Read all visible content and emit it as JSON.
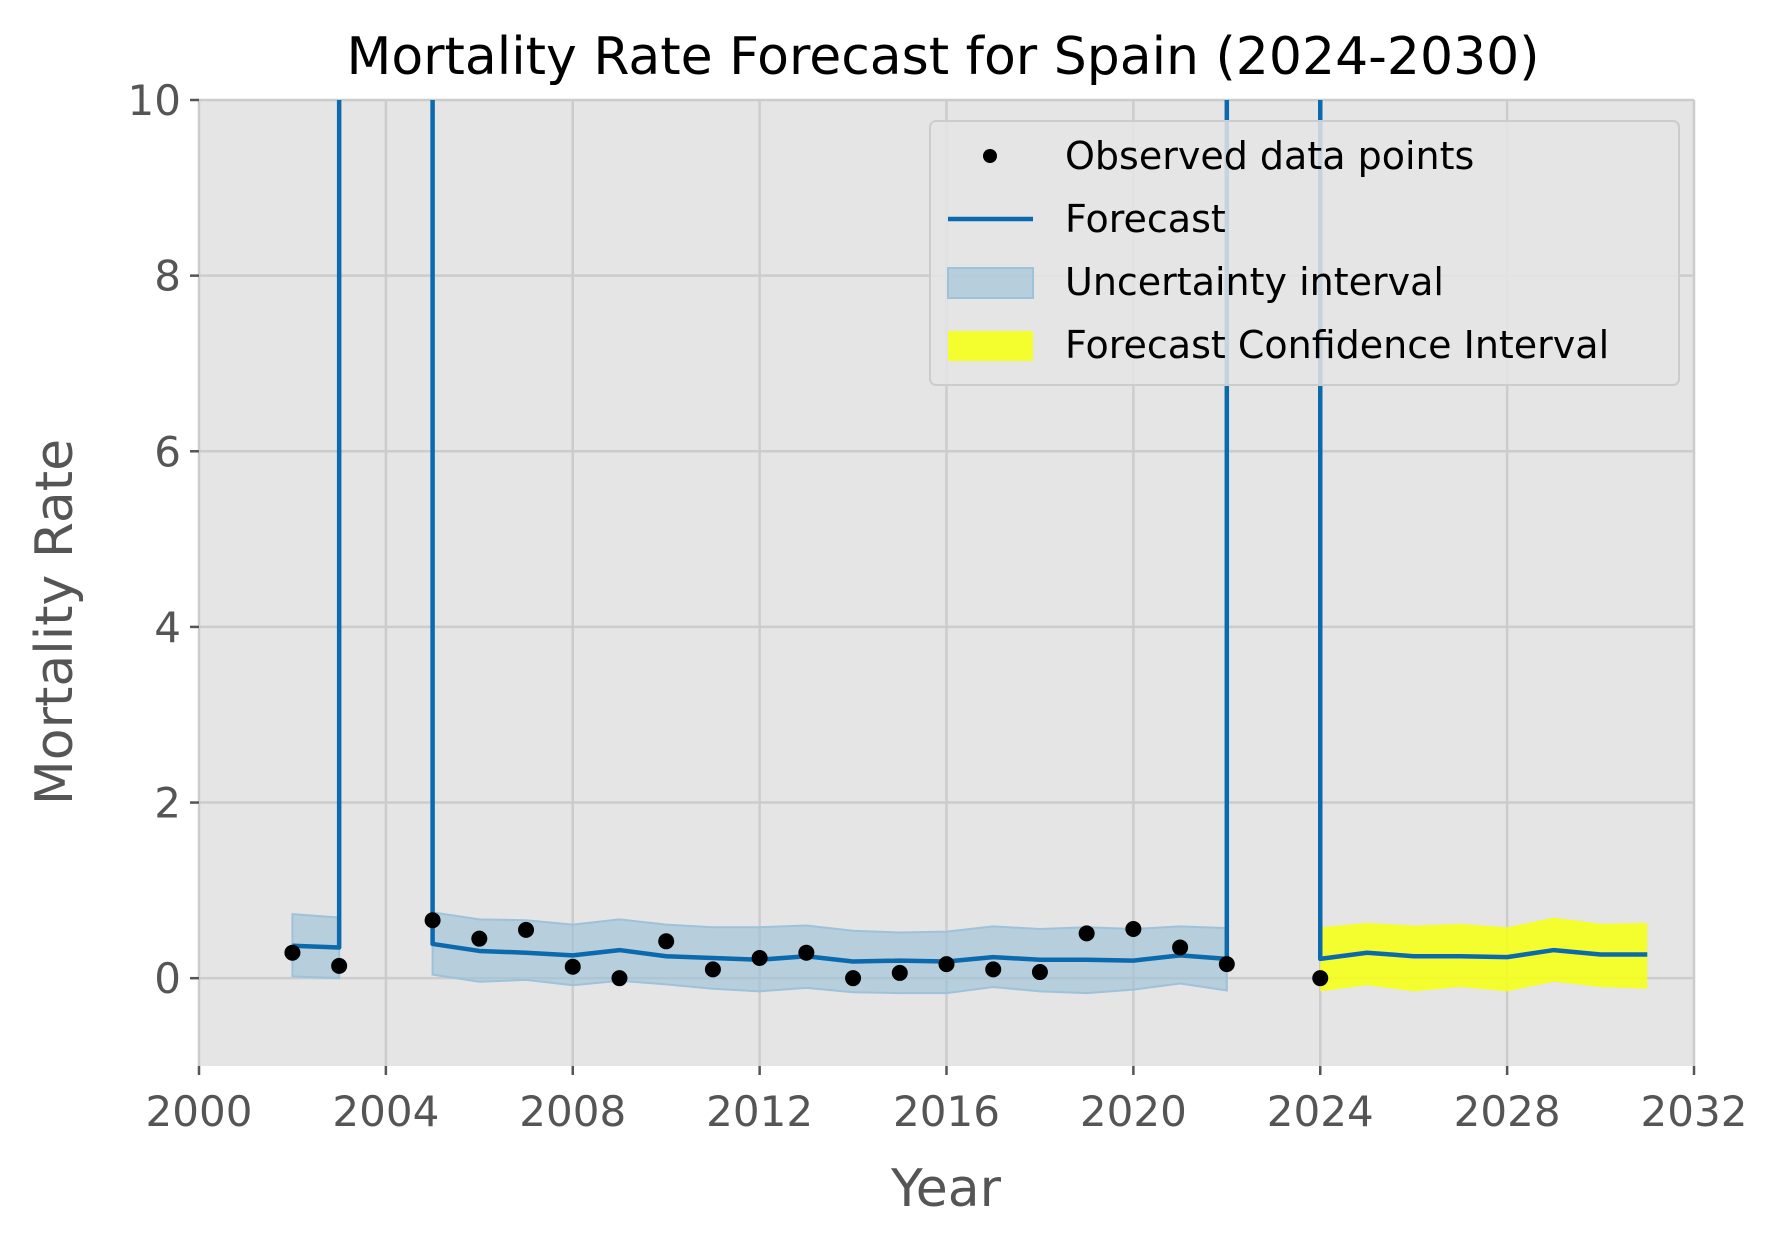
{
  "chart_data": {
    "type": "line",
    "title": "Mortality Rate Forecast for Spain (2024-2030)",
    "xlabel": "Year",
    "ylabel": "Mortality Rate",
    "xlim": [
      2000,
      2032
    ],
    "ylim": [
      -1,
      10
    ],
    "xticks": [
      2000,
      2004,
      2008,
      2012,
      2016,
      2020,
      2024,
      2028,
      2032
    ],
    "yticks": [
      0,
      2,
      4,
      6,
      8,
      10
    ],
    "xtick_labels": [
      "2000",
      "2004",
      "2008",
      "2012",
      "2016",
      "2020",
      "2024",
      "2028",
      "2032"
    ],
    "ytick_labels": [
      "0",
      "2",
      "4",
      "6",
      "8",
      "10"
    ],
    "grid": true,
    "legend_position": "top-right",
    "colors": {
      "background": "#e5e5e5",
      "grid": "#cccccc",
      "forecast": "#0a6aad",
      "uncertainty": "#9ec2d9",
      "confidence": "#f5ff1a",
      "points": "#000000"
    },
    "legend": [
      {
        "label": "Observed data points",
        "kind": "point"
      },
      {
        "label": "Forecast",
        "kind": "line"
      },
      {
        "label": "Uncertainty interval",
        "kind": "band"
      },
      {
        "label": "Forecast Confidence Interval",
        "kind": "confidence"
      }
    ],
    "observed": {
      "name": "Observed data points",
      "x": [
        2002,
        2003,
        2005,
        2006,
        2007,
        2008,
        2009,
        2010,
        2011,
        2012,
        2013,
        2014,
        2015,
        2016,
        2017,
        2018,
        2019,
        2020,
        2021,
        2022,
        2024
      ],
      "y": [
        0.29,
        0.14,
        0.66,
        0.45,
        0.55,
        0.13,
        0.0,
        0.42,
        0.1,
        0.23,
        0.29,
        0.0,
        0.06,
        0.16,
        0.1,
        0.07,
        0.51,
        0.56,
        0.35,
        0.16,
        0.0
      ]
    },
    "forecast": {
      "name": "Forecast",
      "x": [
        2002,
        2003,
        2003,
        2005,
        2005,
        2006,
        2007,
        2008,
        2009,
        2010,
        2011,
        2012,
        2013,
        2014,
        2015,
        2016,
        2017,
        2018,
        2019,
        2020,
        2021,
        2022,
        2022,
        2024,
        2024,
        2025,
        2026,
        2027,
        2028,
        2029,
        2030,
        2031
      ],
      "y": [
        0.37,
        0.35,
        12,
        12,
        0.39,
        0.31,
        0.29,
        0.26,
        0.32,
        0.25,
        0.23,
        0.21,
        0.25,
        0.19,
        0.2,
        0.19,
        0.24,
        0.21,
        0.21,
        0.2,
        0.26,
        0.22,
        12,
        12,
        0.22,
        0.29,
        0.25,
        0.25,
        0.24,
        0.32,
        0.27,
        0.27
      ]
    },
    "uncertainty": {
      "name": "Uncertainty interval",
      "segments": [
        {
          "x": [
            2002,
            2003
          ],
          "lower": [
            0.02,
            0.0
          ],
          "upper": [
            0.73,
            0.69
          ]
        },
        {
          "x": [
            2005,
            2006,
            2007,
            2008,
            2009,
            2010,
            2011,
            2012,
            2013,
            2014,
            2015,
            2016,
            2017,
            2018,
            2019,
            2020,
            2021,
            2022
          ],
          "lower": [
            0.04,
            -0.04,
            -0.02,
            -0.08,
            -0.03,
            -0.07,
            -0.12,
            -0.15,
            -0.11,
            -0.16,
            -0.17,
            -0.17,
            -0.1,
            -0.15,
            -0.17,
            -0.13,
            -0.06,
            -0.14
          ],
          "upper": [
            0.75,
            0.67,
            0.66,
            0.61,
            0.67,
            0.61,
            0.58,
            0.58,
            0.6,
            0.54,
            0.52,
            0.53,
            0.59,
            0.56,
            0.58,
            0.56,
            0.59,
            0.57
          ]
        }
      ]
    },
    "confidence": {
      "name": "Forecast Confidence Interval",
      "x": [
        2024,
        2025,
        2026,
        2027,
        2028,
        2029,
        2030,
        2031
      ],
      "lower": [
        -0.15,
        -0.08,
        -0.15,
        -0.1,
        -0.15,
        -0.04,
        -0.1,
        -0.12
      ],
      "upper": [
        0.58,
        0.63,
        0.6,
        0.62,
        0.58,
        0.69,
        0.62,
        0.63
      ]
    }
  }
}
